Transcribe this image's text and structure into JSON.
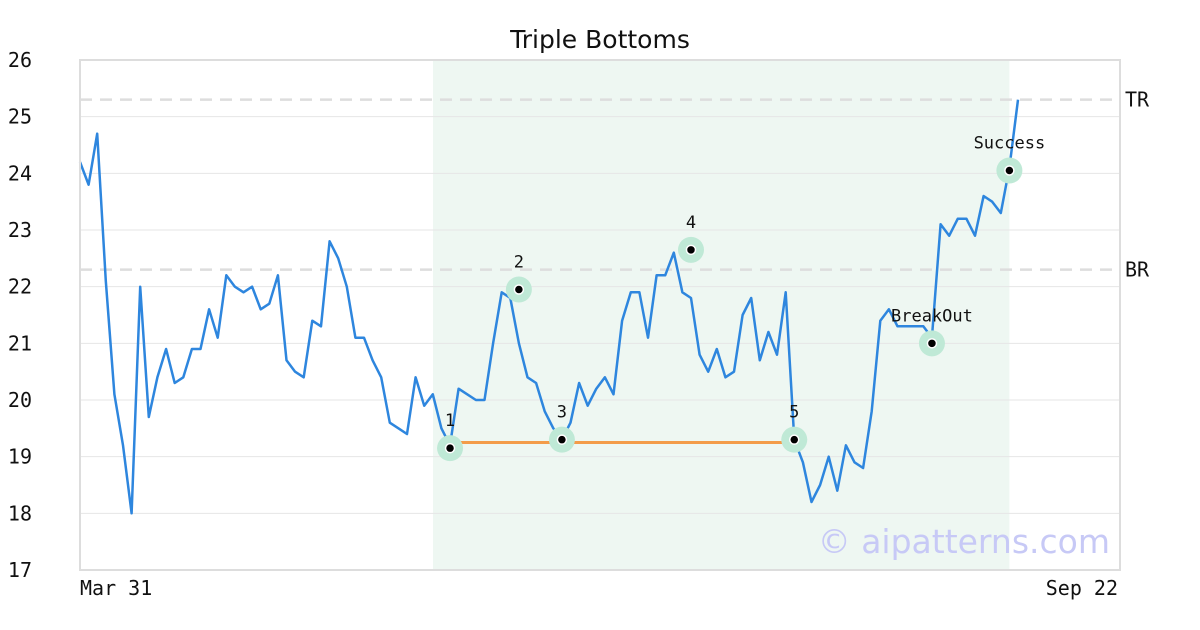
{
  "chart_data": {
    "type": "line",
    "title": "Triple Bottoms",
    "xlabel": "",
    "ylabel": "",
    "ylim": [
      17,
      26
    ],
    "y_ticks": [
      "17",
      "18",
      "19",
      "20",
      "21",
      "22",
      "23",
      "24",
      "25",
      "26"
    ],
    "x_ticks": {
      "start": "Mar 31",
      "end": "Sep 22"
    },
    "grid": "horizontal",
    "series": [
      {
        "color": "#2e86de",
        "values": [
          24.2,
          23.8,
          24.7,
          22.1,
          20.1,
          19.2,
          18.0,
          22.0,
          19.7,
          20.4,
          20.9,
          20.3,
          20.4,
          20.9,
          20.9,
          21.6,
          21.1,
          22.2,
          22.0,
          21.9,
          22.0,
          21.6,
          21.7,
          22.2,
          20.7,
          20.5,
          20.4,
          21.4,
          21.3,
          22.8,
          22.5,
          22.0,
          21.1,
          21.1,
          20.7,
          20.4,
          19.6,
          19.5,
          19.4,
          20.4,
          19.9,
          20.1,
          19.5,
          19.2,
          20.2,
          20.1,
          20.0,
          20.0,
          21.0,
          21.9,
          21.8,
          21.0,
          20.4,
          20.3,
          19.8,
          19.5,
          19.3,
          19.6,
          20.3,
          19.9,
          20.2,
          20.4,
          20.1,
          21.4,
          21.9,
          21.9,
          21.1,
          22.2,
          22.2,
          22.6,
          21.9,
          21.8,
          20.8,
          20.5,
          20.9,
          20.4,
          20.5,
          21.5,
          21.8,
          20.7,
          21.2,
          20.8,
          21.9,
          19.3,
          18.9,
          18.2,
          18.5,
          19.0,
          18.4,
          19.2,
          18.9,
          18.8,
          19.8,
          21.4,
          21.6,
          21.3,
          21.3,
          21.3,
          21.3,
          21.1,
          23.1,
          22.9,
          23.2,
          23.2,
          22.9,
          23.6,
          23.5,
          23.3,
          24.1,
          25.3
        ]
      }
    ],
    "reference_lines": [
      {
        "label": "TR",
        "y": 25.3
      },
      {
        "label": "BR",
        "y": 22.3
      }
    ],
    "support_line": {
      "from_index": 43,
      "to_index": 83,
      "y": 19.25,
      "color": "#f39c4a"
    },
    "pattern_range": {
      "from_index": 43,
      "to_index": 108
    },
    "points": [
      {
        "label": "1",
        "index": 43,
        "y": 19.15
      },
      {
        "label": "2",
        "index": 51,
        "y": 21.95
      },
      {
        "label": "3",
        "index": 56,
        "y": 19.3
      },
      {
        "label": "4",
        "index": 71,
        "y": 22.65
      },
      {
        "label": "5",
        "index": 83,
        "y": 19.3
      },
      {
        "label": "BreakOut",
        "index": 99,
        "y": 21.0
      },
      {
        "label": "Success",
        "index": 108,
        "y": 24.05
      }
    ]
  },
  "watermark": "© aipatterns.com",
  "colors": {
    "line": "#2e86de",
    "support": "#f39c4a",
    "pattern_band": "#eef7f2",
    "marker_halo": "#bfe9d6",
    "reference": "#dddddd"
  }
}
